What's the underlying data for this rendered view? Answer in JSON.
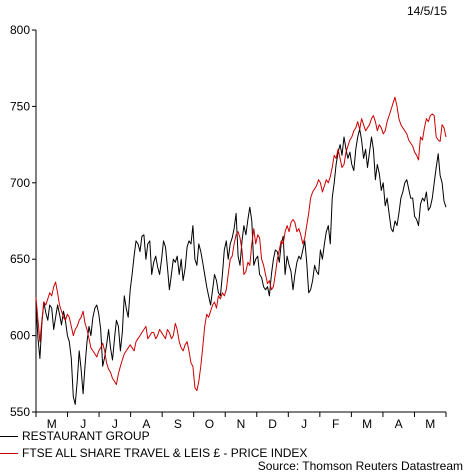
{
  "date_stamp": "14/5/15",
  "source": "Source: Thomson Reuters Datastream",
  "colors": {
    "series_0": "#000000",
    "series_1": "#cc0000",
    "axis": "#000000"
  },
  "chart_data": {
    "type": "line",
    "title": "",
    "xlabel": "",
    "ylabel": "",
    "ylim": [
      550,
      800
    ],
    "yticks": [
      550,
      600,
      650,
      700,
      750,
      800
    ],
    "x_tick_labels": [
      "M",
      "J",
      "J",
      "A",
      "S",
      "O",
      "N",
      "D",
      "J",
      "F",
      "M",
      "A",
      "M"
    ],
    "grid": false,
    "legend_position": "bottom-left",
    "series": [
      {
        "name": "RESTAURANT GROUP",
        "color": "#000000",
        "values": [
          620,
          598,
          585,
          608,
          622,
          615,
          610,
          620,
          618,
          604,
          612,
          620,
          614,
          607,
          616,
          610,
          600,
          596,
          585,
          560,
          555,
          570,
          590,
          578,
          562,
          580,
          596,
          606,
          600,
          612,
          618,
          620,
          614,
          604,
          580,
          586,
          594,
          604,
          592,
          584,
          598,
          610,
          606,
          590,
          602,
          626,
          618,
          612,
          630,
          640,
          652,
          662,
          660,
          655,
          665,
          666,
          650,
          660,
          662,
          640,
          648,
          652,
          645,
          640,
          650,
          662,
          658,
          645,
          630,
          640,
          650,
          648,
          652,
          640,
          650,
          636,
          644,
          658,
          662,
          660,
          672,
          650,
          646,
          660,
          655,
          648,
          640,
          632,
          626,
          620,
          630,
          640,
          636,
          628,
          626,
          640,
          656,
          662,
          650,
          660,
          664,
          670,
          680,
          652,
          646,
          662,
          672,
          666,
          676,
          684,
          675,
          646,
          650,
          652,
          640,
          638,
          632,
          630,
          632,
          626,
          640,
          650,
          656,
          655,
          648,
          660,
          665,
          640,
          652,
          646,
          642,
          630,
          640,
          648,
          652,
          650,
          656,
          662,
          648,
          628,
          630,
          636,
          646,
          642,
          640,
          656,
          650,
          660,
          668,
          672,
          660,
          690,
          700,
          712,
          720,
          725,
          718,
          730,
          722,
          716,
          720,
          712,
          708,
          722,
          730,
          735,
          728,
          716,
          722,
          710,
          720,
          730,
          722,
          702,
          712,
          706,
          695,
          700,
          685,
          690,
          680,
          670,
          668,
          675,
          672,
          680,
          690,
          694,
          700,
          702,
          696,
          690,
          690,
          678,
          676,
          672,
          686,
          690,
          688,
          694,
          682,
          684,
          690,
          700,
          710,
          719,
          705,
          700,
          688,
          684
        ]
      },
      {
        "name": "FTSE ALL SHARE TRAVEL & LEIS £ - PRICE INDEX",
        "color": "#cc0000",
        "values": [
          625,
          610,
          596,
          610,
          622,
          620,
          624,
          628,
          626,
          632,
          635,
          628,
          620,
          616,
          612,
          610,
          614,
          612,
          606,
          600,
          604,
          606,
          610,
          612,
          616,
          608,
          604,
          598,
          592,
          590,
          588,
          586,
          590,
          592,
          595,
          590,
          582,
          578,
          576,
          572,
          570,
          568,
          575,
          580,
          584,
          588,
          590,
          592,
          594,
          592,
          590,
          596,
          598,
          600,
          602,
          604,
          606,
          598,
          600,
          602,
          602,
          598,
          600,
          604,
          602,
          600,
          598,
          604,
          602,
          598,
          600,
          608,
          604,
          596,
          592,
          590,
          594,
          596,
          590,
          582,
          580,
          566,
          564,
          570,
          580,
          592,
          606,
          614,
          612,
          616,
          620,
          622,
          618,
          626,
          624,
          628,
          626,
          630,
          640,
          650,
          652,
          660,
          666,
          668,
          664,
          656,
          640,
          642,
          648,
          646,
          660,
          670,
          660,
          666,
          664,
          650,
          646,
          640,
          634,
          636,
          630,
          632,
          640,
          650,
          656,
          662,
          660,
          668,
          672,
          668,
          674,
          676,
          674,
          668,
          670,
          666,
          660,
          664,
          672,
          680,
          690,
          694,
          696,
          698,
          702,
          700,
          694,
          698,
          702,
          700,
          704,
          710,
          718,
          716,
          722,
          716,
          710,
          712,
          720,
          724,
          728,
          730,
          734,
          736,
          740,
          735,
          742,
          738,
          734,
          736,
          738,
          742,
          744,
          740,
          734,
          738,
          736,
          732,
          734,
          740,
          744,
          748,
          752,
          756,
          750,
          742,
          738,
          736,
          734,
          732,
          728,
          726,
          724,
          720,
          718,
          715,
          730,
          728,
          736,
          742,
          740,
          744,
          745,
          744,
          730,
          728,
          727,
          738,
          736,
          730
        ]
      }
    ]
  }
}
